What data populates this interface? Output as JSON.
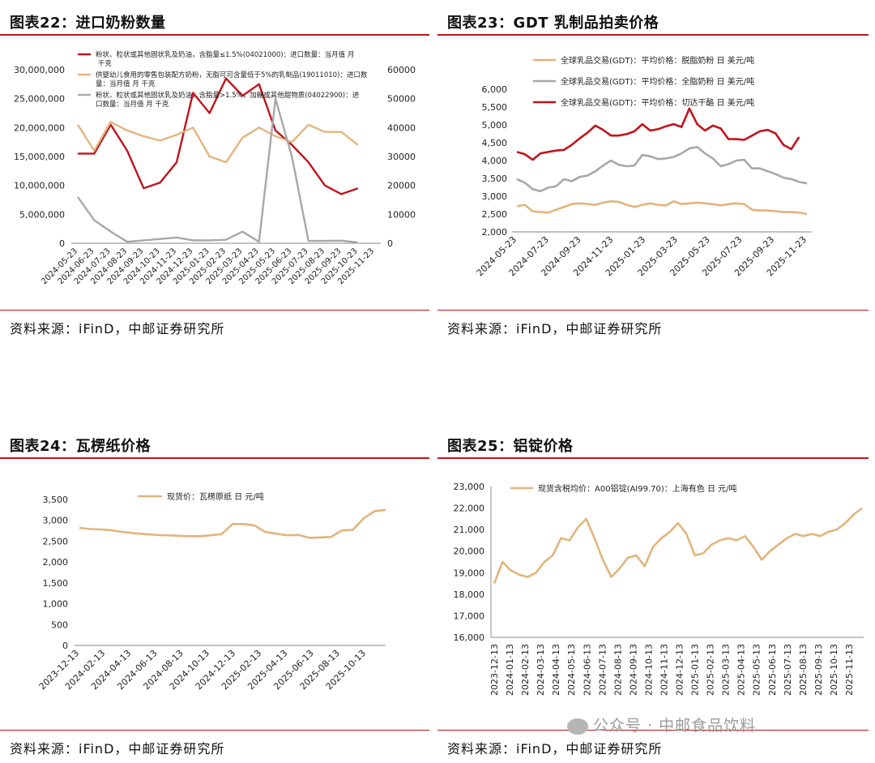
{
  "panels": [
    {
      "title": "图表22：进口奶粉数量",
      "source": "资料来源：iFinD，中邮证券研究所",
      "chart_data": {
        "type": "line",
        "x": [
          "2024-05-23",
          "2024-06-23",
          "2024-07-23",
          "2024-08-23",
          "2024-09-23",
          "2024-10-23",
          "2024-11-23",
          "2024-12-23",
          "2025-01-23",
          "2025-02-23",
          "2025-03-23",
          "2025-04-23",
          "2025-05-23",
          "2025-06-23",
          "2025-07-23",
          "2025-08-23",
          "2025-09-23",
          "2025-10-23",
          "2025-11-23"
        ],
        "left_axis": {
          "ylim": [
            0,
            30000000
          ],
          "ticks": [
            "0",
            "5,000,000",
            "10,000,000",
            "15,000,000",
            "20,000,000",
            "25,000,000",
            "30,000,000"
          ]
        },
        "right_axis": {
          "ylim": [
            0,
            60000
          ],
          "ticks": [
            "0",
            "10000",
            "20000",
            "30000",
            "40000",
            "50000",
            "60000"
          ]
        },
        "series": [
          {
            "name": "粉状、粒状或其他固状乳及奶油，含脂量≤1.5%(04021000)：进口数量：当月值 月 千克",
            "color": "#c0141c",
            "axis": "left",
            "values": [
              15500000,
              15500000,
              20500000,
              16000000,
              9500000,
              10500000,
              14000000,
              26000000,
              22500000,
              28500000,
              25500000,
              27500000,
              19500000,
              17000000,
              14000000,
              10000000,
              8500000,
              9500000,
              null
            ]
          },
          {
            "name": "供婴幼儿食用的零售包装配方奶粉，无脂可可含量低于5%的乳制品(19011010)：进口数量：当月值 月 千克",
            "color": "#e3b47c",
            "axis": "right",
            "values": [
              41000,
              32000,
              42000,
              39000,
              37000,
              35500,
              37500,
              40000,
              30000,
              28000,
              36500,
              40000,
              37000,
              35000,
              41000,
              38500,
              38500,
              34000,
              null
            ]
          },
          {
            "name": "粉状、粒状或其他固状乳及奶油，含脂量>1.5%，加糖或其他甜物质(04022900)：进口数量：当月值 月 千克",
            "color": "#a8a8a8",
            "axis": "right",
            "values": [
              16000,
              8000,
              4000,
              500,
              1000,
              1500,
              2000,
              1000,
              1000,
              1200,
              4000,
              500,
              50000,
              30000,
              800,
              800,
              900,
              300,
              null
            ]
          }
        ]
      }
    },
    {
      "title": "图表23：GDT 乳制品拍卖价格",
      "source": "资料来源：iFinD，中邮证券研究所",
      "chart_data": {
        "type": "line",
        "x_ticks": [
          "2024-05-23",
          "2024-07-23",
          "2024-09-23",
          "2024-11-23",
          "2025-01-23",
          "2025-03-23",
          "2025-05-23",
          "2025-07-23",
          "2025-09-23",
          "2025-11-23"
        ],
        "ylim": [
          2000,
          6000
        ],
        "y_ticks": [
          "2,000",
          "2,500",
          "3,000",
          "3,500",
          "4,000",
          "4,500",
          "5,000",
          "5,500",
          "6,000"
        ],
        "series": [
          {
            "name": "全球乳品交易(GDT)：平均价格：脱脂奶粉 日 美元/吨",
            "color": "#e3b47c",
            "values": [
              2720,
              2760,
              2580,
              2560,
              2540,
              2620,
              2700,
              2780,
              2800,
              2780,
              2760,
              2820,
              2860,
              2840,
              2760,
              2700,
              2760,
              2800,
              2760,
              2740,
              2860,
              2780,
              2800,
              2820,
              2800,
              2780,
              2740,
              2780,
              2800,
              2780,
              2620,
              2600,
              2600,
              2580,
              2560,
              2560,
              2540,
              2500
            ]
          },
          {
            "name": "全球乳品交易(GDT)：平均价格：全脂奶粉 日 美元/吨",
            "color": "#a8a8a8",
            "values": [
              3480,
              3380,
              3200,
              3140,
              3240,
              3280,
              3480,
              3420,
              3540,
              3580,
              3700,
              3860,
              4000,
              3880,
              3840,
              3860,
              4160,
              4120,
              4040,
              4060,
              4100,
              4200,
              4340,
              4380,
              4200,
              4060,
              3840,
              3900,
              4000,
              4020,
              3780,
              3780,
              3700,
              3620,
              3520,
              3480,
              3400,
              3360
            ]
          },
          {
            "name": "全球乳品交易(GDT)：平均价格：切达干酪 日 美元/吨",
            "color": "#c0141c",
            "values": [
              4240,
              4180,
              4020,
              4200,
              4240,
              4280,
              4300,
              4440,
              4620,
              4780,
              4980,
              4860,
              4700,
              4700,
              4740,
              4820,
              5020,
              4840,
              4880,
              4960,
              5020,
              4940,
              5460,
              5020,
              4840,
              4980,
              4900,
              4600,
              4600,
              4580,
              4700,
              4820,
              4860,
              4760,
              4440,
              4320,
              4660
            ]
          }
        ]
      }
    },
    {
      "title": "图表24：瓦楞纸价格",
      "source": "资料来源：iFinD，中邮证券研究所",
      "chart_data": {
        "type": "line",
        "x_ticks": [
          "2023-12-13",
          "2024-02-13",
          "2024-04-13",
          "2024-06-13",
          "2024-08-13",
          "2024-10-13",
          "2024-12-13",
          "2025-02-13",
          "2025-04-13",
          "2025-06-13",
          "2025-08-13",
          "2025-10-13"
        ],
        "ylim": [
          0,
          3500
        ],
        "y_ticks": [
          "0",
          "500",
          "1,000",
          "1,500",
          "2,000",
          "2,500",
          "3,000",
          "3,500"
        ],
        "series": [
          {
            "name": "现货价：瓦楞原纸 日 元/吨",
            "color": "#e3b47c",
            "values": [
              2820,
              2790,
              2780,
              2760,
              2720,
              2690,
              2670,
              2650,
              2640,
              2630,
              2620,
              2620,
              2640,
              2670,
              2910,
              2910,
              2880,
              2720,
              2680,
              2640,
              2650,
              2580,
              2590,
              2600,
              2760,
              2770,
              3050,
              3220,
              3250
            ]
          }
        ]
      }
    },
    {
      "title": "图表25：铝锭价格",
      "source": "资料来源：iFinD，中邮证券研究所",
      "chart_data": {
        "type": "line",
        "x_ticks": [
          "2023-12-13",
          "2024-01-13",
          "2024-02-13",
          "2024-03-13",
          "2024-04-13",
          "2024-05-13",
          "2024-06-13",
          "2024-07-13",
          "2024-08-13",
          "2024-09-13",
          "2024-10-13",
          "2024-11-13",
          "2024-12-13",
          "2025-01-13",
          "2025-02-13",
          "2025-03-13",
          "2025-04-13",
          "2025-05-13",
          "2025-06-13",
          "2025-07-13",
          "2025-08-13",
          "2025-09-13",
          "2025-10-13",
          "2025-11-13"
        ],
        "ylim": [
          16000,
          23000
        ],
        "y_ticks": [
          "16,000",
          "17,000",
          "18,000",
          "19,000",
          "20,000",
          "21,000",
          "22,000",
          "23,000"
        ],
        "series": [
          {
            "name": "现货含税均价：A00铝锭(AI99.70)：上海有色 日 元/吨",
            "color": "#e3b47c",
            "values": [
              18500,
              19500,
              19100,
              18900,
              18800,
              19000,
              19500,
              19800,
              20600,
              20500,
              21100,
              21500,
              20600,
              19600,
              18800,
              19200,
              19700,
              19800,
              19300,
              20200,
              20600,
              20900,
              21300,
              20800,
              19800,
              19900,
              20300,
              20500,
              20600,
              20500,
              20700,
              20200,
              19600,
              20000,
              20300,
              20600,
              20800,
              20700,
              20800,
              20700,
              20900,
              21000,
              21300,
              21700,
              22000
            ]
          }
        ]
      }
    }
  ],
  "watermark": "公众号 · 中邮食品饮料"
}
